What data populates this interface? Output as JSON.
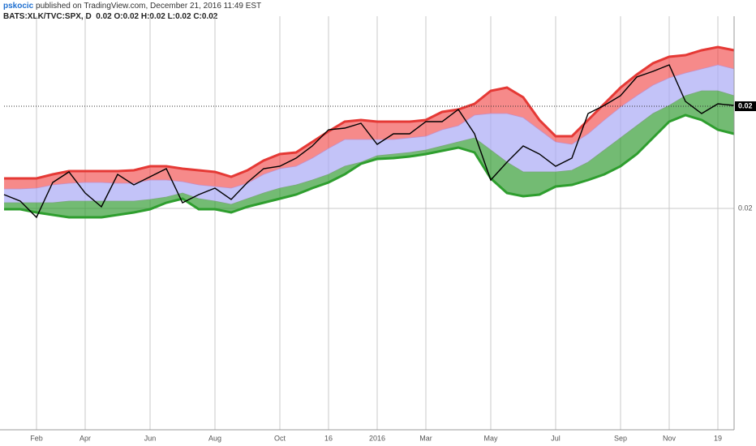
{
  "chart_data": {
    "type": "line",
    "title": "pskocic",
    "subtitle": "published on TradingView.com, December 21, 2016 11:49 EST",
    "symbol_info": "BATS:XLK/TVC:SPX, D  0.02 O:0.02 H:0.02 L:0.02 C:0.02",
    "categories": [
      null,
      null,
      "Feb",
      null,
      null,
      "Apr",
      null,
      null,
      null,
      "Jun",
      null,
      null,
      null,
      "Aug",
      null,
      null,
      null,
      "Oct",
      null,
      null,
      "16",
      null,
      null,
      "2016",
      null,
      null,
      "Mar",
      null,
      null,
      null,
      "May",
      null,
      null,
      null,
      "Jul",
      null,
      null,
      null,
      "Sep",
      null,
      null,
      "Nov",
      null,
      null,
      "19",
      null
    ],
    "ylim": [
      0.01727,
      0.02237
    ],
    "yticks": [
      {
        "value": 0.02,
        "label": "0.02"
      }
    ],
    "last_price": {
      "value": 0.02126,
      "label": "0.02"
    },
    "grid": true,
    "bands": [
      {
        "color": "#e53935",
        "fill": "rgba(240,60,60,0.6)",
        "values": [
          0.02037,
          0.02037,
          0.02037,
          0.02042,
          0.02046,
          0.02046,
          0.02046,
          0.02046,
          0.02047,
          0.02052,
          0.02052,
          0.02049,
          0.02047,
          0.02045,
          0.02039,
          0.02047,
          0.02059,
          0.02067,
          0.02069,
          0.02082,
          0.02095,
          0.02107,
          0.02109,
          0.02107,
          0.02107,
          0.02107,
          0.02109,
          0.02119,
          0.02122,
          0.02129,
          0.02145,
          0.02149,
          0.02137,
          0.02109,
          0.02089,
          0.02089,
          0.02109,
          0.02129,
          0.02149,
          0.02165,
          0.02179,
          0.02187,
          0.02189,
          0.02195,
          0.02199,
          0.02195
        ]
      },
      {
        "color": "#c58fc8",
        "fill": "rgba(170,170,245,0.7)",
        "values": [
          0.02024,
          0.02024,
          0.02025,
          0.02029,
          0.02031,
          0.02032,
          0.02032,
          0.02031,
          0.02031,
          0.02035,
          0.02035,
          0.02033,
          0.02029,
          0.02027,
          0.02025,
          0.02031,
          0.02042,
          0.02049,
          0.02052,
          0.02062,
          0.02074,
          0.02085,
          0.02085,
          0.02085,
          0.02085,
          0.02087,
          0.02089,
          0.02097,
          0.02102,
          0.02115,
          0.02117,
          0.02117,
          0.02112,
          0.02097,
          0.02082,
          0.02079,
          0.02092,
          0.02109,
          0.02125,
          0.02139,
          0.02152,
          0.02161,
          0.02167,
          0.02172,
          0.02177,
          0.02172
        ]
      },
      {
        "color": "#7da67d",
        "fill": "rgba(40,150,40,0.65)",
        "values": [
          0.02007,
          0.02007,
          0.02007,
          0.02007,
          0.02009,
          0.02009,
          0.02009,
          0.02009,
          0.02009,
          0.02011,
          0.02014,
          0.02019,
          0.02012,
          0.02009,
          0.02005,
          0.02012,
          0.02019,
          0.02025,
          0.02029,
          0.02035,
          0.02042,
          0.02052,
          0.02057,
          0.02065,
          0.02067,
          0.02069,
          0.02072,
          0.02077,
          0.02082,
          0.02087,
          0.02072,
          0.02057,
          0.02045,
          0.02045,
          0.02045,
          0.02047,
          0.02057,
          0.02072,
          0.02087,
          0.02102,
          0.02117,
          0.02127,
          0.02139,
          0.02145,
          0.02145,
          0.02139
        ]
      },
      {
        "color": "#2e9e2e",
        "values": [
          0.01999,
          0.01999,
          0.01995,
          0.01992,
          0.01989,
          0.01989,
          0.01989,
          0.01992,
          0.01995,
          0.01999,
          0.02007,
          0.02012,
          0.01999,
          0.01999,
          0.01995,
          0.02002,
          0.02007,
          0.02012,
          0.02017,
          0.02025,
          0.02032,
          0.02042,
          0.02055,
          0.02061,
          0.02062,
          0.02064,
          0.02067,
          0.02071,
          0.02075,
          0.02069,
          0.02037,
          0.02019,
          0.02015,
          0.02017,
          0.02027,
          0.02029,
          0.02035,
          0.02042,
          0.02052,
          0.02067,
          0.02087,
          0.02107,
          0.02115,
          0.02109,
          0.02097,
          0.02092
        ]
      }
    ],
    "series": [
      {
        "color": "#000000",
        "values": [
          0.02017,
          0.02009,
          0.01989,
          0.02032,
          0.02045,
          0.02019,
          0.02002,
          0.02042,
          0.02029,
          0.02039,
          0.02049,
          0.02007,
          0.02017,
          0.02025,
          0.02011,
          0.02032,
          0.02049,
          0.02052,
          0.02062,
          0.02077,
          0.02097,
          0.02099,
          0.02105,
          0.02079,
          0.02092,
          0.02092,
          0.02107,
          0.02107,
          0.02122,
          0.02092,
          0.02035,
          0.02057,
          0.02077,
          0.02067,
          0.02052,
          0.02062,
          0.02117,
          0.02127,
          0.02139,
          0.02162,
          0.02169,
          0.02177,
          0.02132,
          0.02117,
          0.02129,
          0.02127
        ]
      }
    ]
  }
}
